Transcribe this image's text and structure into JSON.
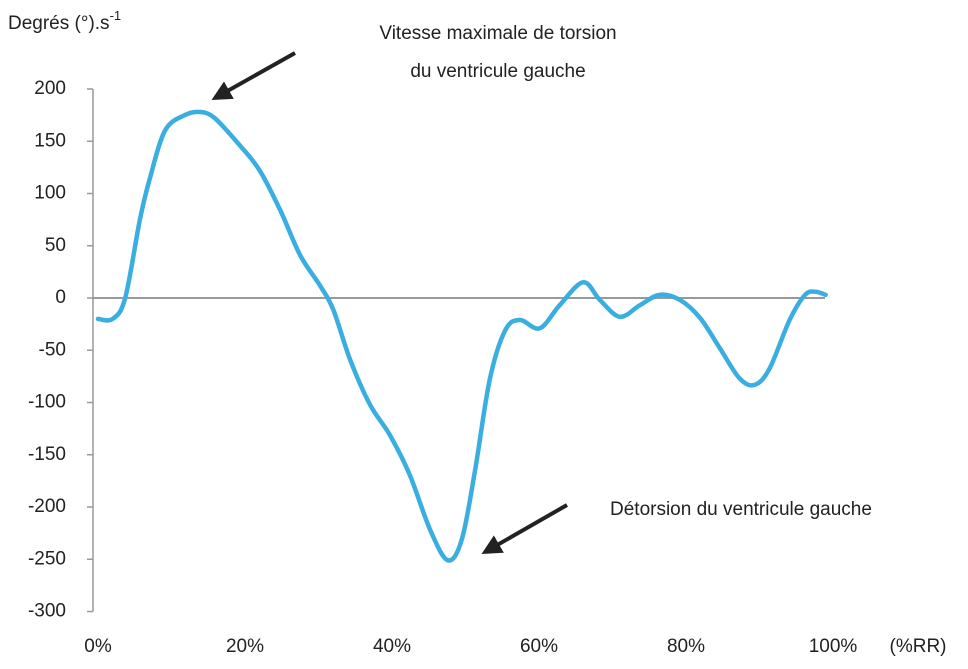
{
  "chart_data": {
    "type": "line",
    "ylabel": "Degrés (°).s",
    "ylabel_sup": "-1",
    "xlabel": "(%RR)",
    "annotations": [
      {
        "lines": [
          "Vitesse maximale de torsion",
          "du ventricule gauche"
        ]
      },
      {
        "lines": [
          "Détorsion du ventricule gauche"
        ]
      }
    ],
    "xlim": [
      0,
      100
    ],
    "xticks": [
      {
        "value": 0,
        "label": "0%"
      },
      {
        "value": 20,
        "label": "20%"
      },
      {
        "value": 40,
        "label": "40%"
      },
      {
        "value": 60,
        "label": "60%"
      },
      {
        "value": 80,
        "label": "80%"
      },
      {
        "value": 100,
        "label": "100%"
      }
    ],
    "ylim": [
      -300,
      200
    ],
    "yticks": [
      -300,
      -250,
      -200,
      -150,
      -100,
      -50,
      0,
      50,
      100,
      150,
      200
    ],
    "series": [
      {
        "color": "#3aaee0",
        "x": [
          0,
          2,
          3.7,
          5.7,
          7,
          9.1,
          11.8,
          13.9,
          15.9,
          19.3,
          22,
          24.8,
          27.5,
          30.2,
          32,
          34.3,
          37,
          39.7,
          42.4,
          45.2,
          47.6,
          49.5,
          51.3,
          53.3,
          55.4,
          57.4,
          60.1,
          62.8,
          66,
          68.3,
          71,
          73.7,
          76.4,
          79.2,
          81.9,
          84.6,
          87.3,
          89.4,
          91.4,
          94.1,
          96.2,
          97.6,
          99
        ],
        "values": [
          -20,
          -20,
          0,
          75,
          113,
          160,
          175,
          178,
          172,
          146,
          122,
          84,
          41,
          12,
          -11,
          -59,
          -102,
          -131,
          -169,
          -222,
          -251,
          -231,
          -165,
          -78,
          -31,
          -21,
          -29,
          -7,
          15,
          -2,
          -18,
          -7,
          3,
          -2,
          -19,
          -48,
          -77,
          -83,
          -67,
          -21,
          3,
          6,
          3
        ]
      }
    ]
  }
}
